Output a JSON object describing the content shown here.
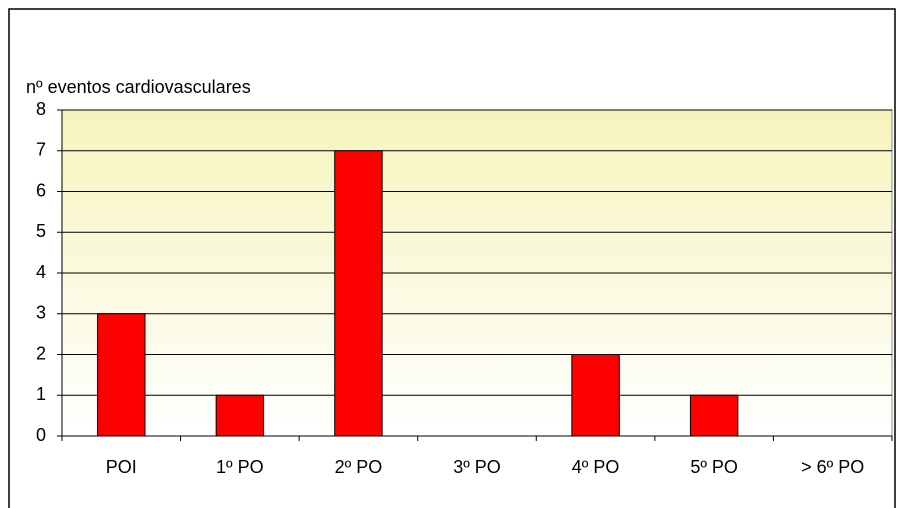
{
  "chart_data": {
    "type": "bar",
    "y_axis_label": "nº eventos cardiovasculares",
    "categories": [
      "POI",
      "1º PO",
      "2º PO",
      "3º PO",
      "4º PO",
      "5º PO",
      "> 6º PO"
    ],
    "values": [
      3,
      1,
      7,
      0,
      2,
      1,
      0
    ],
    "color": "#ff0000",
    "ylim": [
      0,
      8
    ],
    "yticks": [
      0,
      1,
      2,
      3,
      4,
      5,
      6,
      7,
      8
    ],
    "grid": true
  }
}
